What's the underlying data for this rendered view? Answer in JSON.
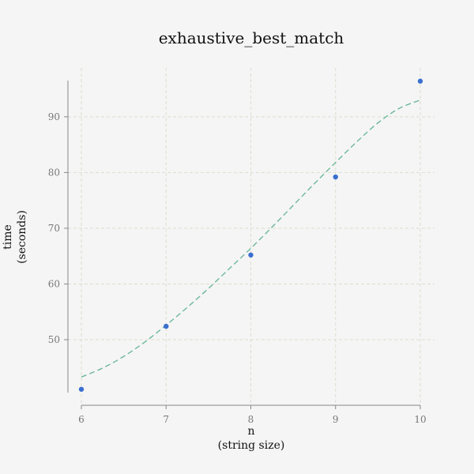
{
  "chart_data": {
    "type": "scatter",
    "title": "exhaustive_best_match",
    "xlabel_lines": [
      "n",
      "(string size)"
    ],
    "ylabel_lines": [
      "time",
      "(seconds)"
    ],
    "x_ticks": [
      6,
      7,
      8,
      9,
      10
    ],
    "y_ticks": [
      50,
      60,
      70,
      80,
      90
    ],
    "xlim": [
      6,
      10
    ],
    "ylim": [
      40.5,
      96.5
    ],
    "grid": true,
    "series": [
      {
        "kind": "points",
        "color": "#3a6fd1",
        "x": [
          6,
          7,
          8,
          9,
          10
        ],
        "y": [
          41.1,
          52.4,
          65.2,
          79.2,
          96.4
        ]
      },
      {
        "kind": "fit-curve",
        "color": "#6db89a",
        "x": [
          6.0,
          6.25,
          6.5,
          6.75,
          7.0,
          7.25,
          7.5,
          7.75,
          8.0,
          8.25,
          8.5,
          8.75,
          9.0,
          9.25,
          9.5,
          9.75,
          10.0
        ],
        "y": [
          43.3,
          44.9,
          47.0,
          49.6,
          52.6,
          55.8,
          59.2,
          62.8,
          66.4,
          70.2,
          74.1,
          78.0,
          81.8,
          85.5,
          88.9,
          91.5,
          93.0
        ]
      }
    ]
  }
}
